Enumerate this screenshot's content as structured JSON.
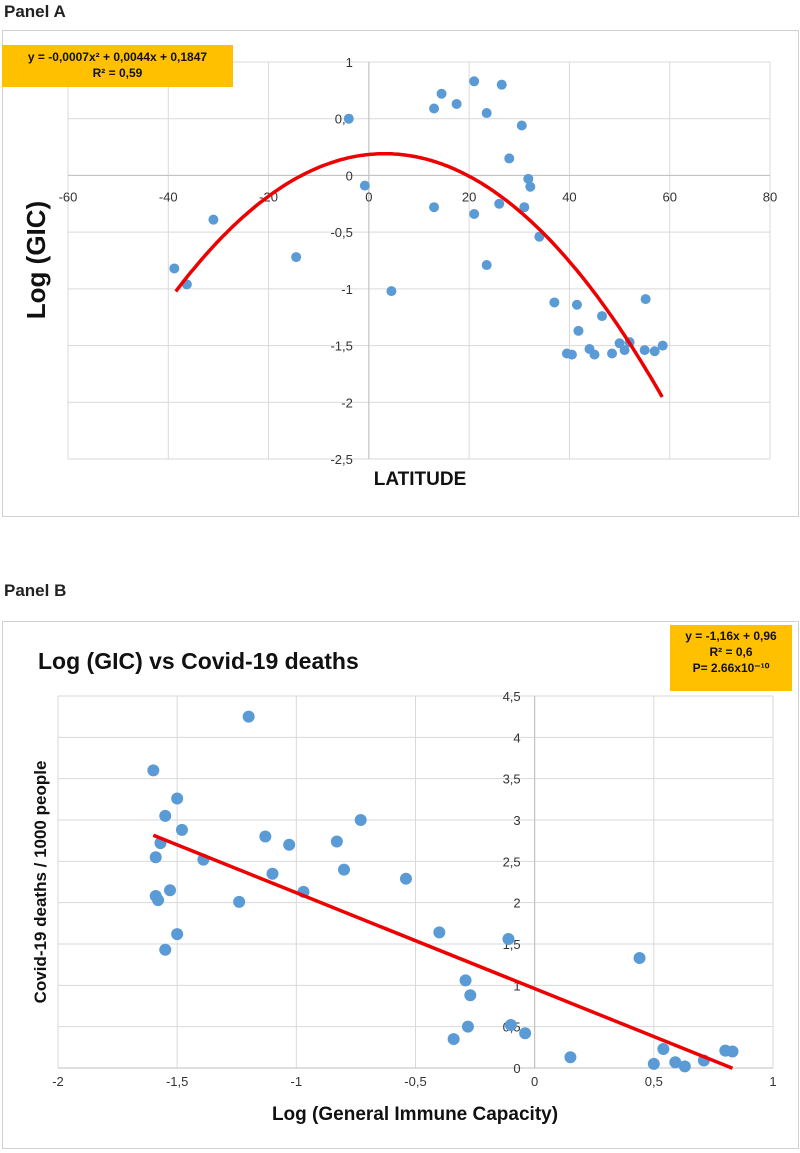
{
  "panels": {
    "a_label": "Panel A",
    "b_label": "Panel B"
  },
  "colors": {
    "point": "#5b9bd5",
    "fit": "#ee0000",
    "grid": "#d9d9d9",
    "eq_box": "#ffc000"
  },
  "chart_data": [
    {
      "type": "scatter",
      "title": "",
      "xlabel": "LATITUDE",
      "ylabel": "Log (GIC)",
      "xlim": [
        -60,
        80
      ],
      "ylim": [
        -2.5,
        1
      ],
      "x_ticks": [
        "-60",
        "-40",
        "-20",
        "0",
        "20",
        "40",
        "60",
        "80"
      ],
      "y_ticks": [
        "1",
        "0,5",
        "0",
        "-0,5",
        "-1",
        "-1,5",
        "-2",
        "-2,5"
      ],
      "grid": true,
      "equation_lines": [
        "y = -0,0007x² + 0,0044x + 0,1847",
        "R² = 0,59"
      ],
      "fit": {
        "type": "polynomial",
        "coefficients": [
          -0.0007,
          0.0044,
          0.1847
        ],
        "x_range": [
          -38.5,
          58.5
        ]
      },
      "series": [
        {
          "x": [
            -38.8,
            -36.3,
            -31,
            -14.5,
            -4,
            -0.8,
            4.5,
            13,
            13,
            14.5,
            17.5,
            21,
            21,
            23.5,
            23.5,
            26,
            26.5,
            28,
            30.5,
            31,
            31.8,
            32.2,
            34,
            37,
            39.5,
            40.5,
            41.5,
            41.8,
            44,
            45,
            46.5,
            48.5,
            50,
            51,
            52,
            55,
            55.2,
            57,
            58.6
          ],
          "y": [
            -0.82,
            -0.96,
            -0.39,
            -0.72,
            0.5,
            -0.09,
            -1.02,
            0.59,
            -0.28,
            0.72,
            0.63,
            0.83,
            -0.34,
            0.55,
            -0.79,
            -0.25,
            0.8,
            0.15,
            0.44,
            -0.28,
            -0.03,
            -0.1,
            -0.54,
            -1.12,
            -1.57,
            -1.58,
            -1.14,
            -1.37,
            -1.53,
            -1.58,
            -1.24,
            -1.57,
            -1.48,
            -1.54,
            -1.47,
            -1.54,
            -1.09,
            -1.55,
            -1.5
          ]
        }
      ]
    },
    {
      "type": "scatter",
      "title": "Log (GIC) vs Covid-19 deaths",
      "xlabel": "Log (General Immune Capacity)",
      "ylabel": "Covid-19 deaths / 1000 people",
      "xlim": [
        -2,
        1
      ],
      "ylim": [
        0,
        4.5
      ],
      "x_ticks": [
        "-2",
        "-1,5",
        "-1",
        "-0,5",
        "0",
        "0,5",
        "1"
      ],
      "y_ticks": [
        "4,5",
        "4",
        "3,5",
        "3",
        "2,5",
        "2",
        "1,5",
        "1",
        "0,5",
        "0"
      ],
      "grid": true,
      "equation_lines": [
        "y = -1,16x + 0,96",
        "R² = 0,6",
        "P= 2.66x10⁻¹⁰"
      ],
      "fit": {
        "type": "linear",
        "slope": -1.16,
        "intercept": 0.96,
        "x_range": [
          -1.6,
          0.83
        ]
      },
      "series": [
        {
          "x": [
            -1.6,
            -1.59,
            -1.59,
            -1.58,
            -1.57,
            -1.55,
            -1.55,
            -1.53,
            -1.5,
            -1.5,
            -1.48,
            -1.39,
            -1.24,
            -1.2,
            -1.13,
            -1.1,
            -1.03,
            -0.97,
            -0.83,
            -0.8,
            -0.73,
            -0.54,
            -0.4,
            -0.34,
            -0.29,
            -0.28,
            -0.27,
            -0.11,
            -0.1,
            -0.04,
            0.15,
            0.44,
            0.5,
            0.54,
            0.59,
            0.63,
            0.71,
            0.8,
            0.83
          ],
          "y": [
            3.6,
            2.55,
            2.08,
            2.03,
            2.72,
            1.43,
            3.05,
            2.15,
            1.62,
            3.26,
            2.88,
            2.52,
            2.01,
            4.25,
            2.8,
            2.35,
            2.7,
            2.13,
            2.74,
            2.4,
            3.0,
            2.29,
            1.64,
            0.35,
            1.06,
            0.5,
            0.88,
            1.56,
            0.52,
            0.42,
            0.13,
            1.33,
            0.05,
            0.23,
            0.07,
            0.02,
            0.09,
            0.21,
            0.2
          ]
        }
      ]
    }
  ]
}
